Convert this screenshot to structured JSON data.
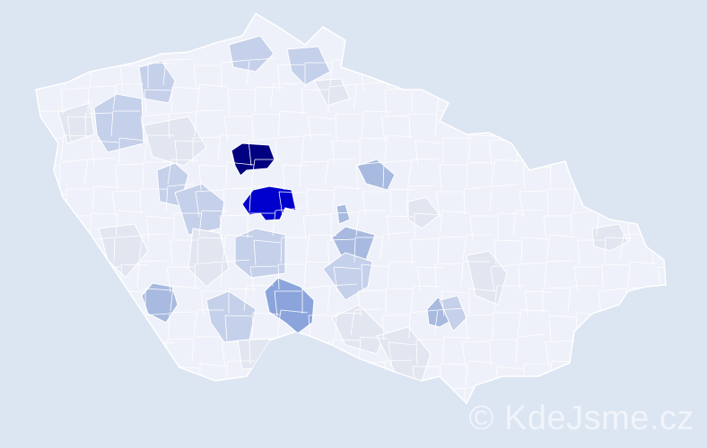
{
  "watermark": "© KdeJsme.cz",
  "colors": {
    "background": "#dce5f2",
    "district_default": "#eef1f9",
    "district_border": "#ffffff",
    "highest": "#000080",
    "high": "#0000cc",
    "medium": "#8ba4dc",
    "low": "#a8badf",
    "lower": "#c5d0ea",
    "lowest": "#e2e6f0"
  }
}
